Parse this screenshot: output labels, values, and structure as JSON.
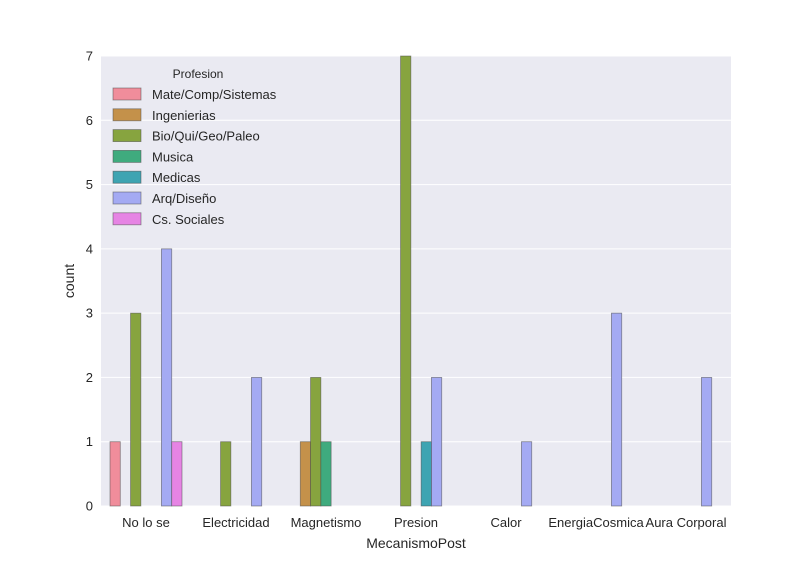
{
  "chart_data": {
    "type": "bar",
    "xlabel": "MecanismoPost",
    "ylabel": "count",
    "ylim": [
      0,
      7
    ],
    "yticks": [
      0,
      1,
      2,
      3,
      4,
      5,
      6,
      7
    ],
    "grid": true,
    "legend_title": "Profesion",
    "legend_position": "top-left",
    "categories": [
      "No lo se",
      "Electricidad",
      "Magnetismo",
      "Presion",
      "Calor",
      "EnergiaCosmica",
      "Aura Corporal"
    ],
    "series": [
      {
        "name": "Mate/Comp/Sistemas",
        "color": "#f08d9b",
        "values": [
          1,
          0,
          0,
          0,
          0,
          0,
          0
        ]
      },
      {
        "name": "Ingenierias",
        "color": "#c4914a",
        "values": [
          0,
          0,
          1,
          0,
          0,
          0,
          0
        ]
      },
      {
        "name": "Bio/Qui/Geo/Paleo",
        "color": "#87a43f",
        "values": [
          3,
          1,
          2,
          7,
          0,
          0,
          0
        ]
      },
      {
        "name": "Musica",
        "color": "#3fab7e",
        "values": [
          0,
          0,
          1,
          0,
          0,
          0,
          0
        ]
      },
      {
        "name": "Medicas",
        "color": "#3ea4b2",
        "values": [
          0,
          0,
          0,
          1,
          0,
          0,
          0
        ]
      },
      {
        "name": "Arq/Diseño",
        "color": "#a4aaf3",
        "values": [
          4,
          2,
          0,
          2,
          1,
          3,
          2
        ]
      },
      {
        "name": "Cs. Sociales",
        "color": "#e684e4",
        "values": [
          1,
          0,
          0,
          0,
          0,
          0,
          0
        ]
      }
    ]
  }
}
